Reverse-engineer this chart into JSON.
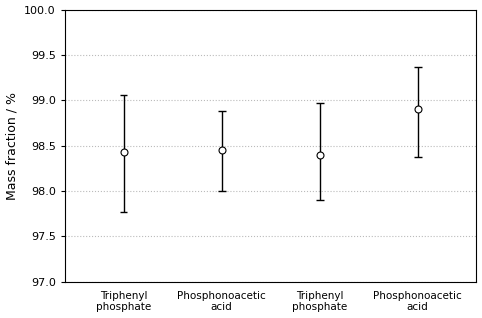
{
  "categories": [
    "Triphenyl\nphosphate",
    "Phosphonoacetic\nacid",
    "Triphenyl\nphosphate",
    "Phosphonoacetic\nacid"
  ],
  "centers": [
    98.43,
    98.45,
    98.4,
    98.9
  ],
  "upper_errors": [
    0.63,
    0.43,
    0.57,
    0.47
  ],
  "lower_errors": [
    0.66,
    0.45,
    0.5,
    0.52
  ],
  "ylim": [
    97.0,
    100.0
  ],
  "yticks": [
    97.0,
    97.5,
    98.0,
    98.5,
    99.0,
    99.5,
    100.0
  ],
  "ylabel": "Mass fraction / %",
  "marker_color": "white",
  "marker_edge_color": "black",
  "line_color": "black",
  "grid_color": "#bbbbbb",
  "background_color": "white",
  "marker_size": 5,
  "linewidth": 1.0,
  "tick_fontsize": 8,
  "ylabel_fontsize": 9,
  "xlabel_fontsize": 7.5,
  "cap_halfwidth": 0.04
}
